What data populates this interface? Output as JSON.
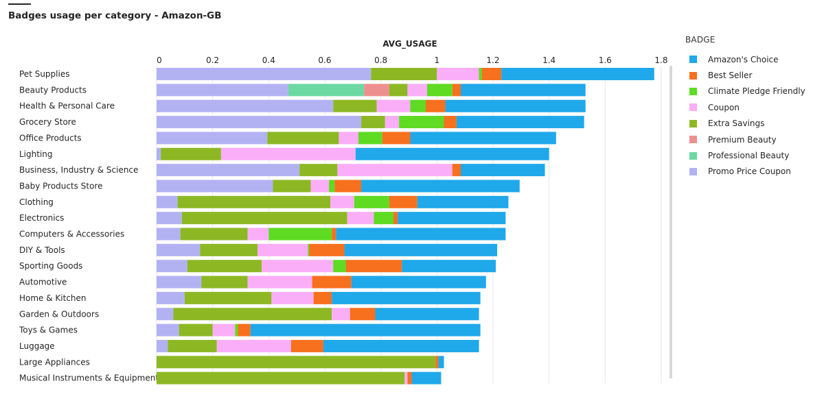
{
  "title": "Badges usage per category - Amazon-GB",
  "chart_data": {
    "type": "bar",
    "orientation": "horizontal",
    "stacked": true,
    "title": "Badges usage per category - Amazon-GB",
    "xlabel": "AVG_USAGE",
    "ylabel": "",
    "xlim": [
      0,
      1.8
    ],
    "xticks": [
      "0",
      "0.2",
      "0.4",
      "0.6",
      "0.8",
      "1",
      "1.2",
      "1.4",
      "1.6",
      "1.8"
    ],
    "xtick_values": [
      0,
      0.2,
      0.4,
      0.6,
      0.8,
      1,
      1.2,
      1.4,
      1.6,
      1.8
    ],
    "grid": true,
    "legend_title": "BADGE",
    "legend_position": "right",
    "legend_order": [
      "Amazon's Choice",
      "Best Seller",
      "Climate Pledge Friendly",
      "Coupon",
      "Extra Savings",
      "Premium Beauty",
      "Professional Beauty",
      "Promo Price Coupon"
    ],
    "stack_order": [
      "Promo Price Coupon",
      "Professional Beauty",
      "Premium Beauty",
      "Extra Savings",
      "Coupon",
      "Climate Pledge Friendly",
      "Best Seller",
      "Amazon's Choice"
    ],
    "colors": {
      "Amazon's Choice": "#1FA8EA",
      "Best Seller": "#F7701E",
      "Climate Pledge Friendly": "#5EDB22",
      "Coupon": "#FBAEF8",
      "Extra Savings": "#8DB824",
      "Premium Beauty": "#EE8F8F",
      "Professional Beauty": "#6CD9A3",
      "Promo Price Coupon": "#B2B2F3"
    },
    "categories": [
      "Pet Supplies",
      "Beauty Products",
      "Health & Personal Care",
      "Grocery Store",
      "Office Products",
      "Lighting",
      "Business, Industry & Science",
      "Baby Products Store",
      "Clothing",
      "Electronics",
      "Computers & Accessories",
      "DIY & Tools",
      "Sporting Goods",
      "Automotive",
      "Home & Kitchen",
      "Garden & Outdoors",
      "Toys & Games",
      "Luggage",
      "Large Appliances",
      "Musical Instruments & Equipment"
    ],
    "series": [
      {
        "name": "Promo Price Coupon",
        "values": [
          0.765,
          0.47,
          0.63,
          0.73,
          0.395,
          0.015,
          0.51,
          0.415,
          0.075,
          0.09,
          0.085,
          0.155,
          0.11,
          0.16,
          0.1,
          0.06,
          0.08,
          0.04,
          0,
          0
        ]
      },
      {
        "name": "Professional Beauty",
        "values": [
          0,
          0.27,
          0,
          0,
          0,
          0,
          0,
          0,
          0,
          0,
          0,
          0,
          0,
          0,
          0,
          0,
          0,
          0,
          0,
          0
        ]
      },
      {
        "name": "Premium Beauty",
        "values": [
          0,
          0.09,
          0,
          0,
          0,
          0,
          0,
          0,
          0,
          0,
          0,
          0,
          0,
          0,
          0,
          0,
          0,
          0,
          0,
          0
        ]
      },
      {
        "name": "Extra Savings",
        "values": [
          0.235,
          0.065,
          0.155,
          0.085,
          0.255,
          0.215,
          0.135,
          0.135,
          0.545,
          0.59,
          0.24,
          0.205,
          0.265,
          0.165,
          0.31,
          0.565,
          0.12,
          0.175,
          0.995,
          0.885
        ]
      },
      {
        "name": "Coupon",
        "values": [
          0.15,
          0.07,
          0.12,
          0.05,
          0.07,
          0.48,
          0.41,
          0.065,
          0.085,
          0.095,
          0.075,
          0.18,
          0.255,
          0.23,
          0.15,
          0.065,
          0.08,
          0.265,
          0,
          0.01
        ]
      },
      {
        "name": "Climate Pledge Friendly",
        "values": [
          0.01,
          0.09,
          0.055,
          0.16,
          0.085,
          0,
          0,
          0.02,
          0.125,
          0.07,
          0.225,
          0.005,
          0.045,
          0,
          0,
          0,
          0.01,
          0,
          0,
          0
        ]
      },
      {
        "name": "Best Seller",
        "values": [
          0.07,
          0.03,
          0.07,
          0.045,
          0.1,
          0,
          0.03,
          0.095,
          0.1,
          0.015,
          0.015,
          0.125,
          0.2,
          0.14,
          0.065,
          0.09,
          0.045,
          0.115,
          0.01,
          0.015
        ]
      },
      {
        "name": "Amazon's Choice",
        "values": [
          0.545,
          0.445,
          0.5,
          0.455,
          0.52,
          0.69,
          0.3,
          0.565,
          0.325,
          0.385,
          0.605,
          0.545,
          0.335,
          0.48,
          0.53,
          0.37,
          0.82,
          0.555,
          0.02,
          0.105
        ]
      }
    ]
  }
}
